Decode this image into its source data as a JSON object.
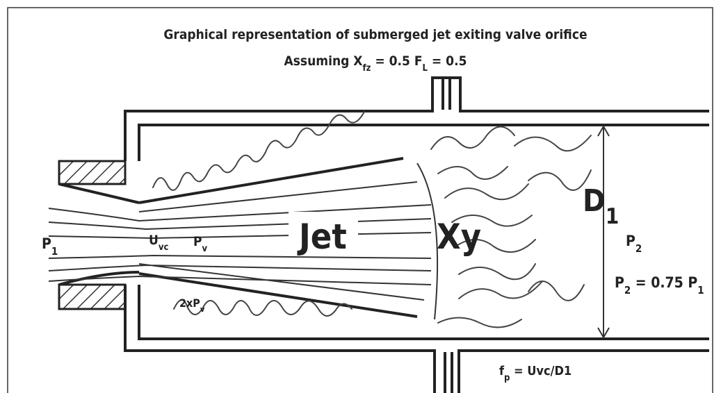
{
  "title": "Graphical representation of submerged jet exiting valve orifice",
  "labels": [
    {
      "parts": [
        {
          "text": "Assuming X"
        },
        {
          "text": "fz",
          "sub": true
        },
        {
          "text": " = 0.5 F"
        },
        {
          "text": "L",
          "sub": true
        },
        {
          "text": " = 0.5"
        }
      ]
    },
    {
      "parts": [
        {
          "text": "P"
        },
        {
          "text": "1",
          "sub": true
        }
      ]
    },
    {
      "parts": [
        {
          "text": "U"
        },
        {
          "text": "vc",
          "sub": true
        }
      ]
    },
    {
      "parts": [
        {
          "text": "P"
        },
        {
          "text": "v",
          "sub": true
        }
      ]
    },
    {
      "parts": [
        {
          "text": "Jet"
        }
      ]
    },
    {
      "parts": [
        {
          "text": "Xy"
        }
      ]
    },
    {
      "parts": [
        {
          "text": "D"
        },
        {
          "text": "1",
          "sub": true
        }
      ]
    },
    {
      "parts": [
        {
          "text": "P"
        },
        {
          "text": "2",
          "sub": true
        }
      ]
    },
    {
      "parts": [
        {
          "text": "P"
        },
        {
          "text": "2",
          "sub": true
        },
        {
          "text": " = 0.75 P"
        },
        {
          "text": "1",
          "sub": true
        }
      ]
    },
    {
      "parts": [
        {
          "text": "2xP"
        },
        {
          "text": "v",
          "sub": true
        }
      ]
    },
    {
      "parts": [
        {
          "text": "f"
        },
        {
          "text": "p",
          "sub": true
        },
        {
          "text": " = Uvc/D1"
        }
      ]
    }
  ]
}
